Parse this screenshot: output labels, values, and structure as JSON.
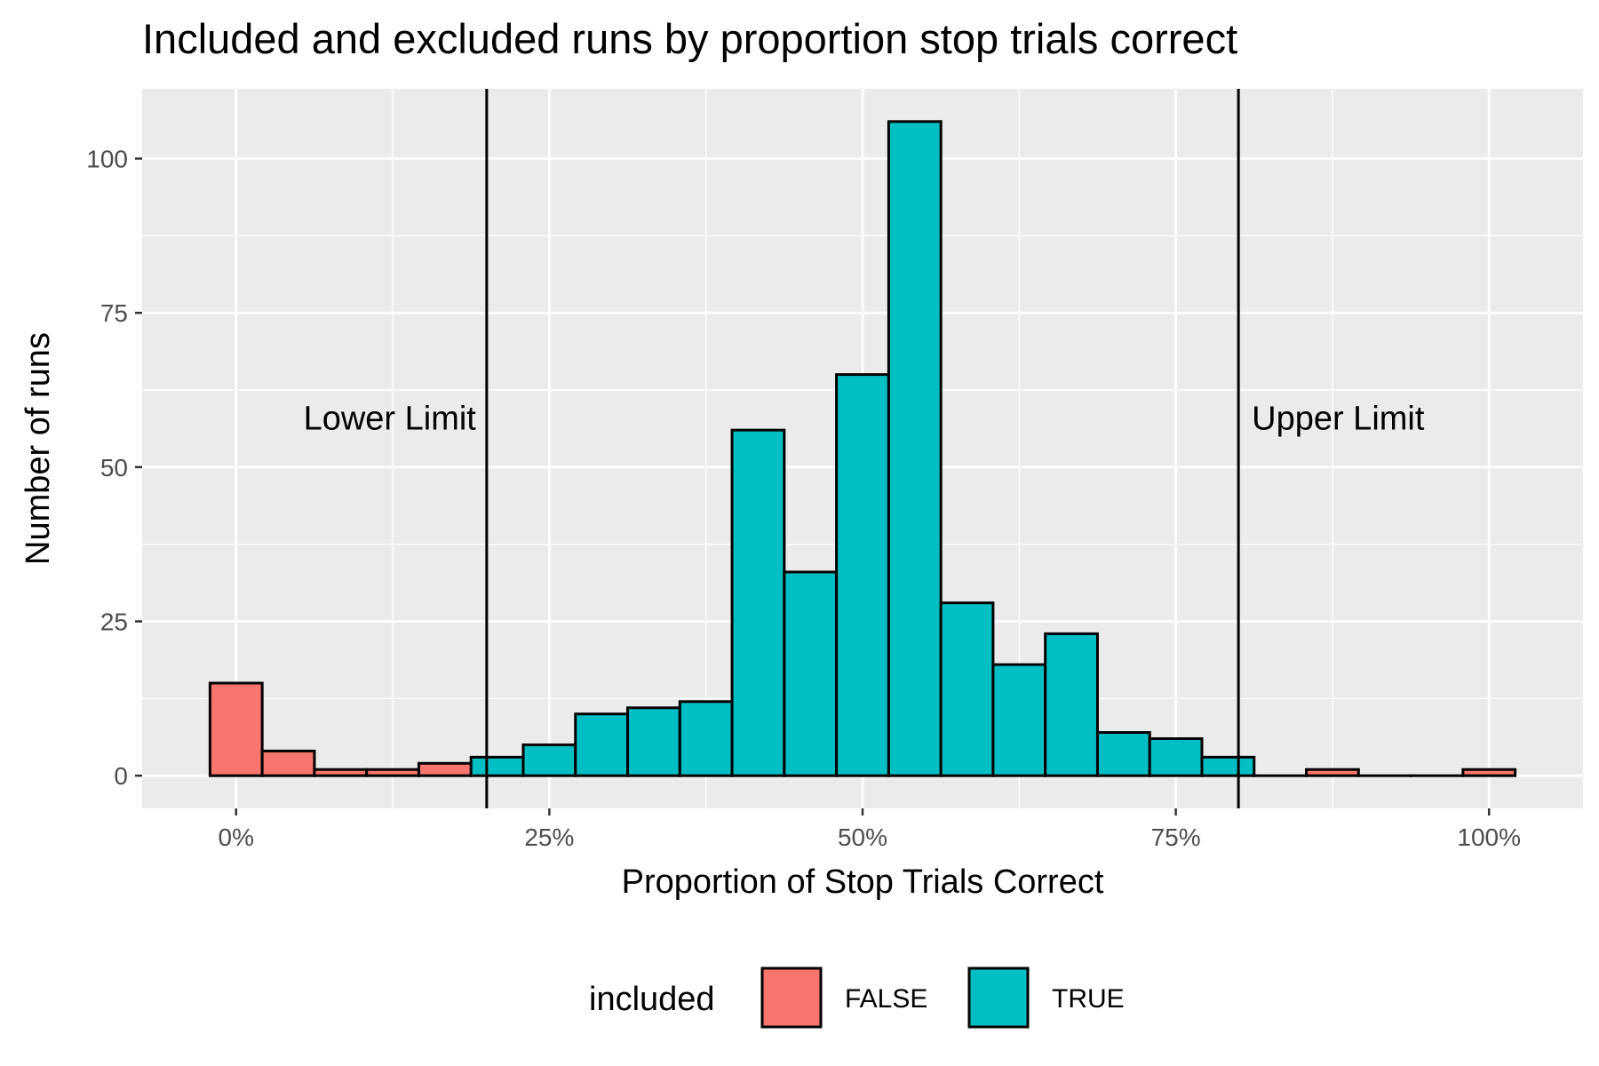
{
  "chart_data": {
    "type": "bar",
    "title": "Included and excluded runs by proportion stop trials correct",
    "xlabel": "Proportion of Stop Trials Correct",
    "ylabel": "Number of runs",
    "x_ticks": [
      {
        "value": 0,
        "label": "0%"
      },
      {
        "value": 0.25,
        "label": "25%"
      },
      {
        "value": 0.5,
        "label": "50%"
      },
      {
        "value": 0.75,
        "label": "75%"
      },
      {
        "value": 1.0,
        "label": "100%"
      }
    ],
    "y_ticks": [
      {
        "value": 0,
        "label": "0"
      },
      {
        "value": 25,
        "label": "25"
      },
      {
        "value": 50,
        "label": "50"
      },
      {
        "value": 75,
        "label": "75"
      },
      {
        "value": 100,
        "label": "100"
      }
    ],
    "xlim": [
      -0.075,
      1.075
    ],
    "ylim": [
      -5.3,
      111.3
    ],
    "bin_width": 0.04167,
    "grid": true,
    "legend": {
      "title": "included",
      "position": "bottom",
      "entries": [
        {
          "label": "FALSE",
          "color": "#F8766D"
        },
        {
          "label": "TRUE",
          "color": "#00BFC4"
        }
      ]
    },
    "reference_lines": [
      {
        "x": 0.2,
        "label": "Lower Limit"
      },
      {
        "x": 0.8,
        "label": "Upper Limit"
      }
    ],
    "bins": [
      {
        "x": 0.0,
        "count": 15,
        "included": "FALSE"
      },
      {
        "x": 0.04167,
        "count": 4,
        "included": "FALSE"
      },
      {
        "x": 0.08333,
        "count": 1,
        "included": "FALSE"
      },
      {
        "x": 0.125,
        "count": 1,
        "included": "FALSE"
      },
      {
        "x": 0.16667,
        "count": 2,
        "included": "FALSE"
      },
      {
        "x": 0.20833,
        "count": 3,
        "included": "TRUE"
      },
      {
        "x": 0.25,
        "count": 5,
        "included": "TRUE"
      },
      {
        "x": 0.29167,
        "count": 10,
        "included": "TRUE"
      },
      {
        "x": 0.33333,
        "count": 11,
        "included": "TRUE"
      },
      {
        "x": 0.375,
        "count": 12,
        "included": "TRUE"
      },
      {
        "x": 0.41667,
        "count": 56,
        "included": "TRUE"
      },
      {
        "x": 0.45833,
        "count": 33,
        "included": "TRUE"
      },
      {
        "x": 0.5,
        "count": 65,
        "included": "TRUE"
      },
      {
        "x": 0.54167,
        "count": 106,
        "included": "TRUE"
      },
      {
        "x": 0.58333,
        "count": 28,
        "included": "TRUE"
      },
      {
        "x": 0.625,
        "count": 18,
        "included": "TRUE"
      },
      {
        "x": 0.66667,
        "count": 23,
        "included": "TRUE"
      },
      {
        "x": 0.70833,
        "count": 7,
        "included": "TRUE"
      },
      {
        "x": 0.75,
        "count": 6,
        "included": "TRUE"
      },
      {
        "x": 0.79167,
        "count": 3,
        "included": "TRUE"
      },
      {
        "x": 0.83333,
        "count": 0,
        "included": "FALSE"
      },
      {
        "x": 0.875,
        "count": 1,
        "included": "FALSE"
      },
      {
        "x": 0.91667,
        "count": 0,
        "included": "FALSE"
      },
      {
        "x": 0.95833,
        "count": 0,
        "included": "FALSE"
      },
      {
        "x": 1.0,
        "count": 1,
        "included": "FALSE"
      }
    ]
  }
}
